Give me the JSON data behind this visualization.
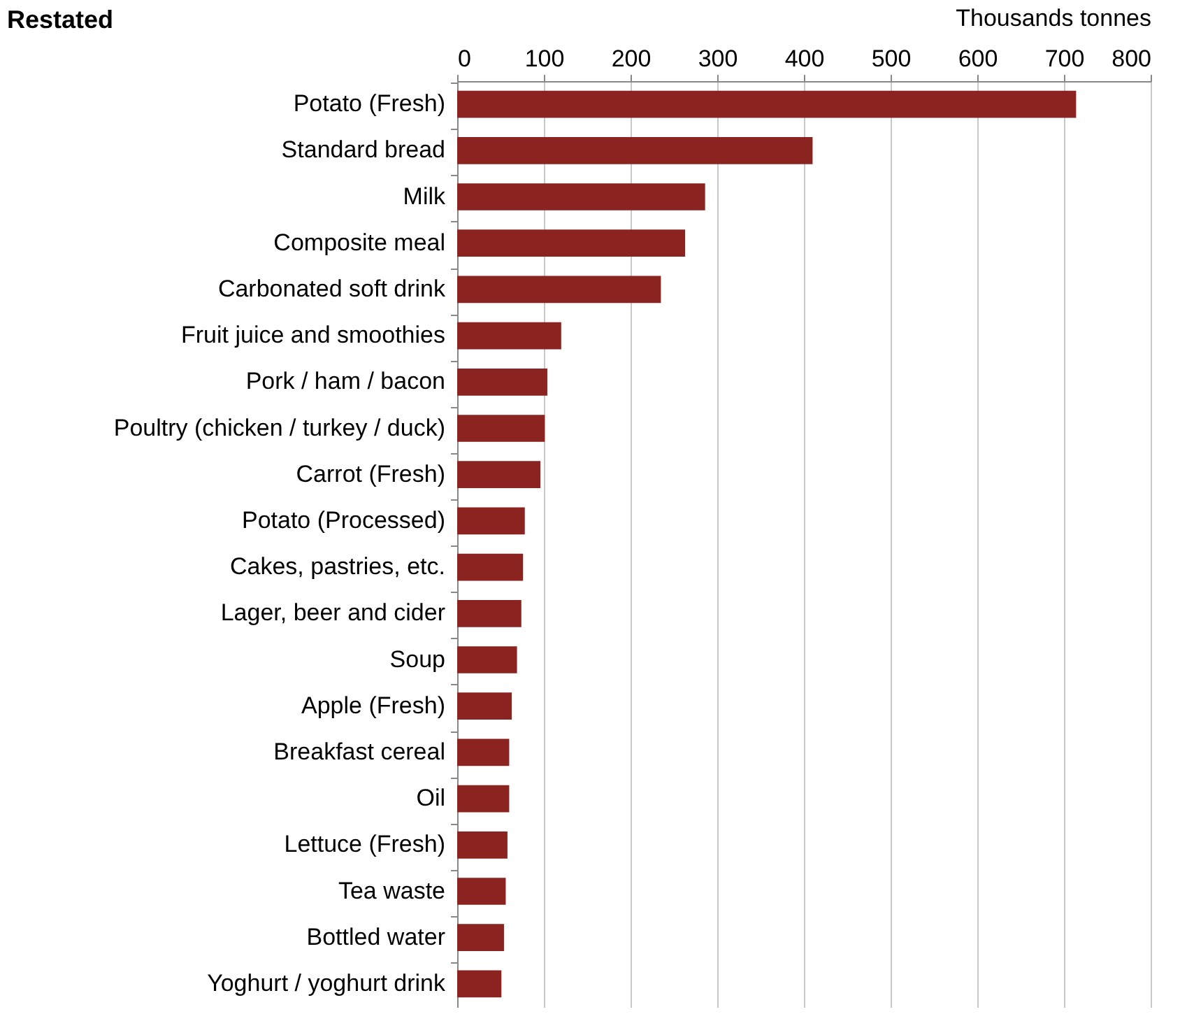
{
  "chart_data": {
    "type": "bar",
    "orientation": "horizontal",
    "title": "Restated",
    "xlabel": "Thousands tonnes",
    "categories": [
      "Potato (Fresh)",
      "Standard bread",
      "Milk",
      "Composite meal",
      "Carbonated soft drink",
      "Fruit juice and smoothies",
      "Pork / ham / bacon",
      "Poultry (chicken / turkey / duck)",
      "Carrot (Fresh)",
      "Potato (Processed)",
      "Cakes, pastries, etc.",
      "Lager, beer and cider",
      "Soup",
      "Apple (Fresh)",
      "Breakfast cereal",
      "Oil",
      "Lettuce (Fresh)",
      "Tea waste",
      "Bottled water",
      "Yoghurt / yoghurt drink"
    ],
    "values": [
      714,
      410,
      286,
      263,
      235,
      120,
      104,
      101,
      96,
      78,
      76,
      74,
      69,
      63,
      60,
      60,
      58,
      56,
      54,
      51
    ],
    "color": "#8b2321",
    "xlim": [
      0,
      800
    ],
    "xticks": [
      0,
      100,
      200,
      300,
      400,
      500,
      600,
      700,
      800
    ],
    "grid": "x"
  }
}
